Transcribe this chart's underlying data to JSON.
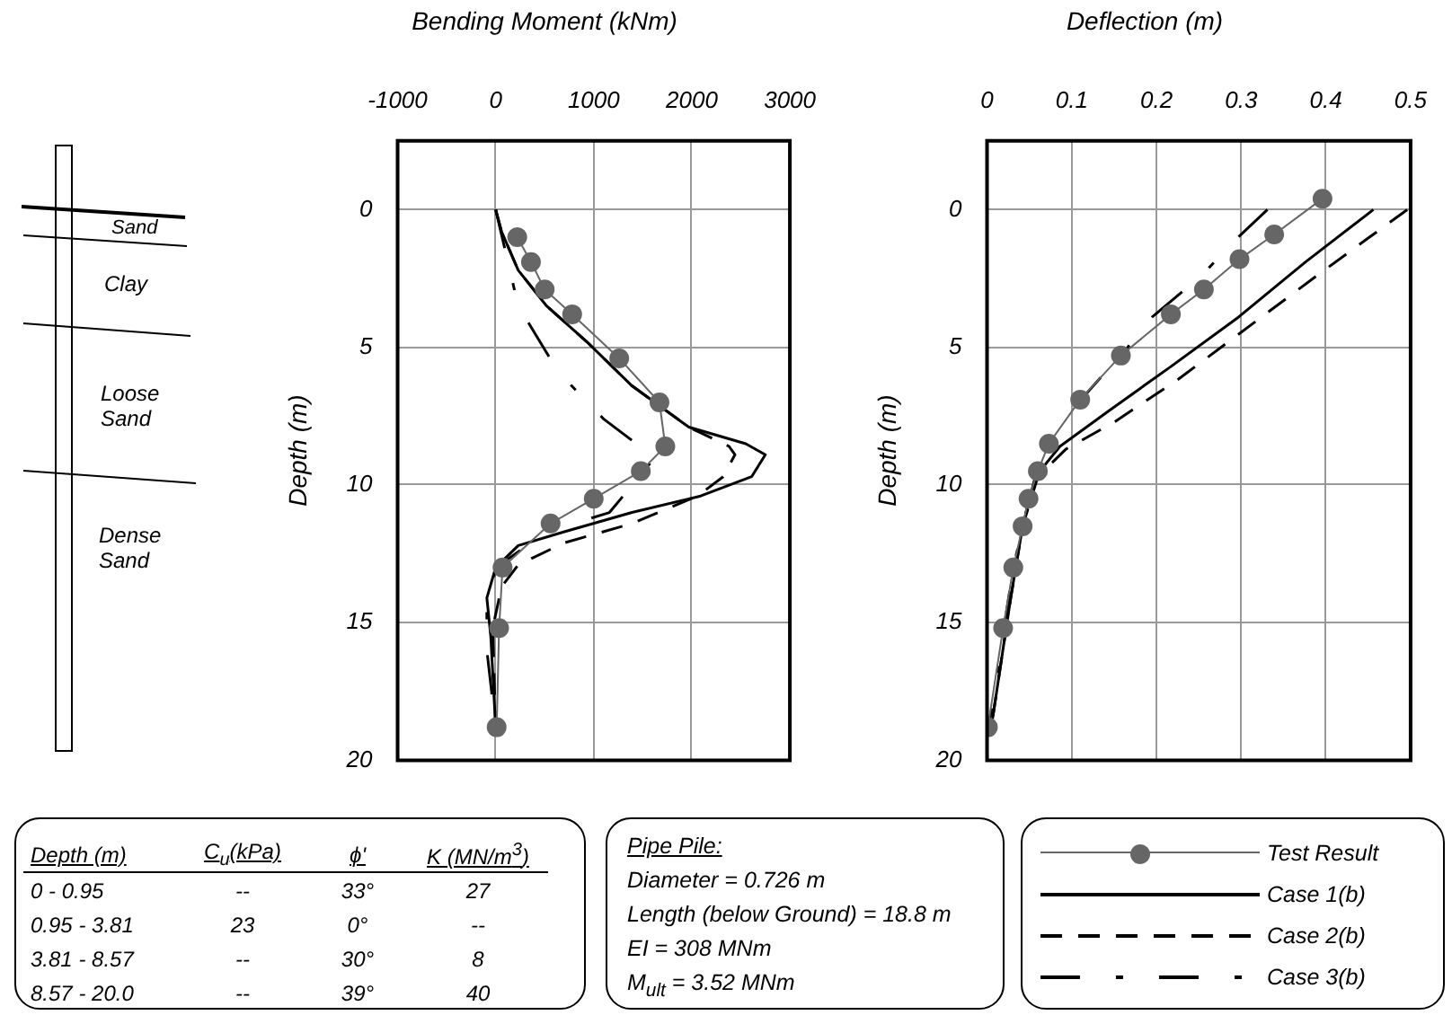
{
  "chart_data": [
    {
      "type": "other",
      "annotations": [
        "Sand",
        "Clay",
        "Loose Sand",
        "Dense Sand"
      ]
    },
    {
      "type": "line",
      "title": "Bending Moment (kNm)",
      "ylabel": "Depth (m)",
      "xlim": [
        -1000,
        3000
      ],
      "xticks": [
        -1000,
        0,
        1000,
        2000,
        3000
      ],
      "ylim": [
        20,
        -2.5
      ],
      "yticks": [
        0,
        5,
        10,
        15,
        20
      ],
      "grid": true,
      "series": [
        {
          "color": "#666666",
          "marker": "circle",
          "line_style": "solid",
          "x": [
            220,
            360,
            500,
            780,
            1260,
            1670,
            1730,
            1480,
            1000,
            560,
            70,
            35,
            10
          ],
          "values": [
            1.0,
            1.9,
            2.9,
            3.8,
            5.4,
            7.0,
            8.6,
            9.5,
            10.5,
            11.4,
            13.0,
            15.2,
            18.8
          ]
        },
        {
          "color": "#000000",
          "marker": "none",
          "line_style": "solid",
          "x": [
            0,
            60,
            230,
            520,
            930,
            1390,
            1970,
            2550,
            2750,
            2610,
            2090,
            1390,
            700,
            230,
            0,
            -90,
            -50,
            0
          ],
          "values": [
            0,
            0.8,
            2.2,
            3.5,
            4.8,
            6.4,
            7.9,
            8.5,
            8.9,
            9.7,
            10.4,
            11.0,
            11.7,
            12.2,
            13.0,
            14.1,
            15.5,
            18.8
          ]
        },
        {
          "color": "#000000",
          "marker": "none",
          "line_style": "dashed",
          "x": [
            0,
            60,
            230,
            520,
            930,
            1390,
            1970,
            2380,
            2440,
            2320,
            2060,
            1390,
            700,
            230,
            60,
            -30,
            0
          ],
          "values": [
            0,
            0.8,
            2.2,
            3.5,
            4.8,
            6.4,
            7.9,
            8.6,
            8.9,
            9.7,
            10.4,
            11.4,
            12.1,
            12.9,
            13.7,
            15.2,
            18.8
          ]
        },
        {
          "color": "#000000",
          "marker": "none",
          "line_style": "dashdot",
          "x": [
            0,
            230,
            640,
            1100,
            1620,
            1510,
            1160,
            520,
            0,
            -90,
            -90,
            0
          ],
          "values": [
            0,
            3.5,
            5.9,
            7.6,
            9.0,
            9.5,
            11.0,
            11.7,
            13.0,
            14.6,
            16.0,
            18.8
          ]
        }
      ]
    },
    {
      "type": "line",
      "title": "Deflection (m)",
      "ylabel": "Depth (m)",
      "xlim": [
        0,
        0.5
      ],
      "xticks": [
        0,
        0.1,
        0.2,
        0.3,
        0.4,
        0.5
      ],
      "ylim": [
        20,
        -2.5
      ],
      "yticks": [
        0,
        5,
        10,
        15,
        20
      ],
      "grid": true,
      "legend": "bottom right",
      "series": [
        {
          "name": "Test Result",
          "color": "#666666",
          "marker": "circle",
          "line_style": "solid",
          "x": [
            0.396,
            0.339,
            0.298,
            0.256,
            0.217,
            0.158,
            0.11,
            0.073,
            0.06,
            0.049,
            0.042,
            0.031,
            0.019,
            0.001
          ],
          "values": [
            -0.4,
            0.9,
            1.8,
            2.9,
            3.8,
            5.3,
            6.9,
            8.5,
            9.5,
            10.5,
            11.5,
            13.0,
            15.2,
            18.8
          ]
        },
        {
          "name": "Case 1(b)",
          "color": "#000000",
          "marker": "none",
          "line_style": "solid",
          "x": [
            0.456,
            0.376,
            0.297,
            0.217,
            0.144,
            0.086,
            0.057,
            0.042,
            0.028,
            0.006,
            0.002
          ],
          "values": [
            0,
            1.9,
            3.9,
            5.7,
            7.3,
            8.6,
            9.7,
            11.5,
            14.1,
            18.6,
            18.9
          ]
        },
        {
          "name": "Case 2(b)",
          "color": "#000000",
          "marker": "none",
          "line_style": "dashed",
          "x": [
            0.496,
            0.398,
            0.311,
            0.224,
            0.151,
            0.093,
            0.06,
            0.042,
            0.028,
            0.006,
            0.002
          ],
          "values": [
            0,
            2.2,
            4.2,
            6.2,
            7.7,
            8.7,
            9.7,
            11.5,
            14.1,
            18.6,
            18.9
          ]
        },
        {
          "name": "Case 3(b)",
          "color": "#000000",
          "marker": "none",
          "line_style": "dashdot",
          "x": [
            0.331,
            0.293,
            0.253,
            0.195,
            0.166,
            0.108,
            0.068,
            0.049,
            0.031,
            0.002
          ],
          "values": [
            0,
            1.1,
            2.4,
            3.9,
            5.0,
            7.0,
            8.8,
            10.6,
            13.0,
            18.8
          ]
        }
      ]
    },
    {
      "type": "other",
      "annotations": [
        "Depth (m)",
        "C$_{u}$(kPa)",
        "ϕ'",
        "K (MN/m$^{3}$)",
        "0 - 0.95",
        "--",
        "33°",
        "27",
        "0.95 - 3.81",
        "23",
        "0°",
        "--",
        "3.81 - 8.57",
        "--",
        "30°",
        "8",
        "8.57 - 20.0",
        "--",
        "39°",
        "40"
      ]
    },
    {
      "type": "other",
      "annotations": [
        "Pipe Pile:",
        "Diameter = 0.726 m",
        "Length (below Ground) = 18.8 m",
        "EI = 308 MNm",
        "M$_{ult}$ = 3.52 MNm"
      ]
    }
  ]
}
